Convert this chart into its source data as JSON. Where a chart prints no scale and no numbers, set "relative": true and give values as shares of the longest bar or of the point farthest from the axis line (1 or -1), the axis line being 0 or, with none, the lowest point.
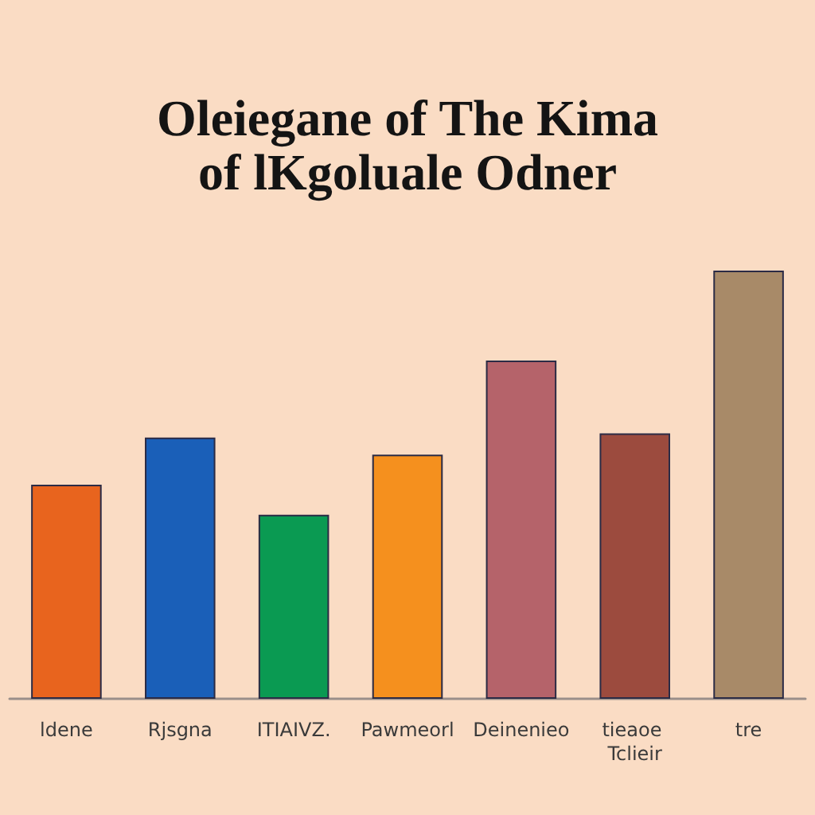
{
  "chart_data": {
    "type": "bar",
    "title": "Oleiegane of The Kima\nof lKgoluale Odner",
    "categories": [
      "ldene",
      "Rjsgna",
      "ITIAIVZ.",
      "Pawmeorl",
      "Deinenieo",
      "tieaoe Tclieir",
      "tre"
    ],
    "values": [
      0.5,
      0.61,
      0.43,
      0.57,
      0.79,
      0.62,
      1
    ],
    "colors": [
      "#e8641e",
      "#1a5fb8",
      "#0a9a52",
      "#f5901e",
      "#b5636a",
      "#9c4b3e",
      "#a88a68"
    ],
    "relative": true
  }
}
